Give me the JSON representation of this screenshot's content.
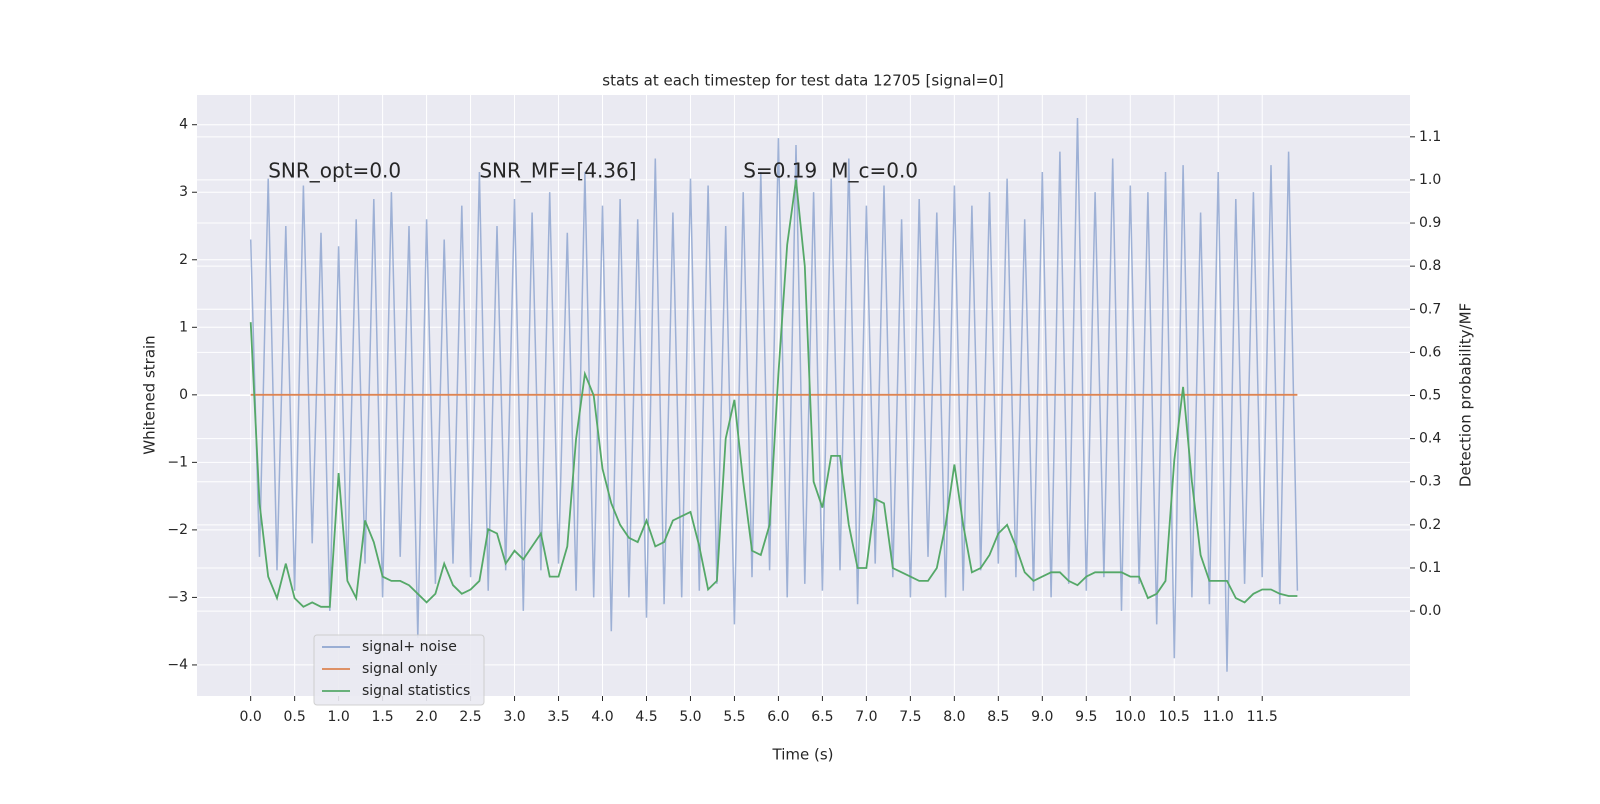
{
  "chart_data": {
    "type": "line",
    "title": "stats at each timestep for test data 12705 [signal=0]",
    "x_label": "Time (s)",
    "y_label": "Whitened strain",
    "y2_label": "Detection probability/MF",
    "annotations": [
      {
        "text": "SNR_opt=0.0",
        "x": 0.2,
        "y": 3.3
      },
      {
        "text": "SNR_MF=[4.36]",
        "x": 2.6,
        "y": 3.3
      },
      {
        "text": "S=0.19",
        "x": 5.6,
        "y": 3.3
      },
      {
        "text": "M_c=0.0",
        "x": 6.6,
        "y": 3.3
      }
    ],
    "xlim": [
      -0.61,
      13.18
    ],
    "ylim": [
      -4.46,
      4.44
    ],
    "y2lim": [
      -0.197,
      1.197
    ],
    "xticks": [
      {
        "value": 0,
        "label": "0.0"
      },
      {
        "value": 0.5,
        "label": "0.5"
      },
      {
        "value": 1,
        "label": "1.0"
      },
      {
        "value": 1.5,
        "label": "1.5"
      },
      {
        "value": 2,
        "label": "2.0"
      },
      {
        "value": 2.5,
        "label": "2.5"
      },
      {
        "value": 3,
        "label": "3.0"
      },
      {
        "value": 3.5,
        "label": "3.5"
      },
      {
        "value": 4,
        "label": "4.0"
      },
      {
        "value": 4.5,
        "label": "4.5"
      },
      {
        "value": 5,
        "label": "5.0"
      },
      {
        "value": 5.5,
        "label": "5.5"
      },
      {
        "value": 6,
        "label": "6.0"
      },
      {
        "value": 6.5,
        "label": "6.5"
      },
      {
        "value": 7,
        "label": "7.0"
      },
      {
        "value": 7.5,
        "label": "7.5"
      },
      {
        "value": 8,
        "label": "8.0"
      },
      {
        "value": 8.5,
        "label": "8.5"
      },
      {
        "value": 9,
        "label": "9.0"
      },
      {
        "value": 9.5,
        "label": "9.5"
      },
      {
        "value": 10,
        "label": "10.0"
      },
      {
        "value": 10.5,
        "label": "10.5"
      },
      {
        "value": 11,
        "label": "11.0"
      },
      {
        "value": 11.5,
        "label": "11.5"
      }
    ],
    "yticks": [
      {
        "value": -4,
        "label": "−4"
      },
      {
        "value": -3,
        "label": "−3"
      },
      {
        "value": -2,
        "label": "−2"
      },
      {
        "value": -1,
        "label": "−1"
      },
      0,
      1,
      2,
      3,
      4
    ],
    "y2ticks": [
      {
        "value": 0,
        "label": "0.0"
      },
      {
        "value": 0.1,
        "label": "0.1"
      },
      {
        "value": 0.2,
        "label": "0.2"
      },
      {
        "value": 0.3,
        "label": "0.3"
      },
      {
        "value": 0.4,
        "label": "0.4"
      },
      {
        "value": 0.5,
        "label": "0.5"
      },
      {
        "value": 0.6,
        "label": "0.6"
      },
      {
        "value": 0.7,
        "label": "0.7"
      },
      {
        "value": 0.8,
        "label": "0.8"
      },
      {
        "value": 0.9,
        "label": "0.9"
      },
      {
        "value": 1,
        "label": "1.0"
      },
      {
        "value": 1.1,
        "label": "1.1"
      }
    ],
    "grid": true,
    "legend": "lower left",
    "x": [
      0,
      0.1,
      0.2,
      0.3,
      0.4,
      0.5,
      0.6,
      0.7,
      0.8,
      0.9,
      1,
      1.1,
      1.2,
      1.3,
      1.4,
      1.5,
      1.6,
      1.7,
      1.8,
      1.9,
      2,
      2.1,
      2.2,
      2.3,
      2.4,
      2.5,
      2.6,
      2.7,
      2.8,
      2.9,
      3,
      3.1,
      3.2,
      3.3,
      3.4,
      3.5,
      3.6,
      3.7,
      3.8,
      3.9,
      4,
      4.1,
      4.2,
      4.3,
      4.4,
      4.5,
      4.6,
      4.7,
      4.8,
      4.9,
      5,
      5.1,
      5.2,
      5.3,
      5.4,
      5.5,
      5.6,
      5.7,
      5.8,
      5.9,
      6,
      6.1,
      6.2,
      6.3,
      6.4,
      6.5,
      6.6,
      6.7,
      6.8,
      6.9,
      7,
      7.1,
      7.2,
      7.3,
      7.4,
      7.5,
      7.6,
      7.7,
      7.8,
      7.9,
      8,
      8.1,
      8.2,
      8.3,
      8.4,
      8.5,
      8.6,
      8.7,
      8.8,
      8.9,
      9,
      9.1,
      9.2,
      9.3,
      9.4,
      9.5,
      9.6,
      9.7,
      9.8,
      9.9,
      10,
      10.1,
      10.2,
      10.3,
      10.4,
      10.5,
      10.6,
      10.7,
      10.8,
      10.9,
      11,
      11.1,
      11.2,
      11.3,
      11.4,
      11.5,
      11.6,
      11.7,
      11.8,
      11.9
    ],
    "series": [
      {
        "name": "signal+ noise",
        "color": "#8fa6d0",
        "values": [
          2.3,
          -2.4,
          3.2,
          -2.6,
          2.5,
          -2.9,
          3.1,
          -2.2,
          2.4,
          -3.2,
          2.2,
          -2.7,
          2.6,
          -2.5,
          2.9,
          -3.0,
          3.0,
          -2.4,
          2.5,
          -3.6,
          2.6,
          -2.8,
          2.3,
          -2.5,
          2.8,
          -2.7,
          3.3,
          -2.9,
          2.5,
          -2.6,
          2.9,
          -3.2,
          2.7,
          -2.6,
          3.0,
          -2.5,
          2.4,
          -2.9,
          3.3,
          -3.0,
          2.8,
          -3.5,
          2.9,
          -3.0,
          2.6,
          -3.3,
          3.5,
          -3.1,
          2.7,
          -3.0,
          3.2,
          -2.9,
          3.1,
          -2.8,
          2.5,
          -3.4,
          3.0,
          -2.7,
          3.3,
          -2.6,
          3.8,
          -3.0,
          3.7,
          -2.8,
          3.0,
          -2.9,
          3.2,
          -2.6,
          3.5,
          -3.1,
          2.8,
          -2.5,
          3.1,
          -2.7,
          2.6,
          -3.0,
          2.9,
          -2.4,
          2.7,
          -3.0,
          3.1,
          -2.9,
          2.8,
          -2.6,
          3.0,
          -2.5,
          3.2,
          -2.7,
          2.6,
          -2.9,
          3.3,
          -3.0,
          3.6,
          -2.8,
          4.1,
          -2.9,
          3.0,
          -2.7,
          3.5,
          -3.2,
          3.1,
          -2.8,
          3.0,
          -3.4,
          3.3,
          -3.9,
          3.4,
          -3.0,
          2.7,
          -3.1,
          3.3,
          -4.1,
          2.9,
          -2.8,
          3.0,
          -2.7,
          3.4,
          -3.1,
          3.6,
          -2.9
        ]
      },
      {
        "name": "signal only",
        "color": "#dd8452",
        "x": [
          0,
          11.9
        ],
        "values": [
          0,
          0
        ]
      },
      {
        "name": "signal statistics",
        "color": "#55a868",
        "axis": "y2",
        "values": [
          0.67,
          0.25,
          0.08,
          0.03,
          0.11,
          0.03,
          0.01,
          0.02,
          0.01,
          0.01,
          0.32,
          0.07,
          0.03,
          0.21,
          0.16,
          0.08,
          0.07,
          0.07,
          0.06,
          0.04,
          0.02,
          0.04,
          0.11,
          0.06,
          0.04,
          0.05,
          0.07,
          0.19,
          0.18,
          0.11,
          0.14,
          0.12,
          0.15,
          0.18,
          0.08,
          0.08,
          0.15,
          0.4,
          0.55,
          0.5,
          0.33,
          0.25,
          0.2,
          0.17,
          0.16,
          0.21,
          0.15,
          0.16,
          0.21,
          0.22,
          0.23,
          0.15,
          0.05,
          0.07,
          0.4,
          0.49,
          0.3,
          0.14,
          0.13,
          0.2,
          0.55,
          0.85,
          1.0,
          0.8,
          0.3,
          0.24,
          0.36,
          0.36,
          0.2,
          0.1,
          0.1,
          0.26,
          0.25,
          0.1,
          0.09,
          0.08,
          0.07,
          0.07,
          0.1,
          0.2,
          0.34,
          0.2,
          0.09,
          0.1,
          0.13,
          0.18,
          0.2,
          0.15,
          0.09,
          0.07,
          0.08,
          0.09,
          0.09,
          0.07,
          0.06,
          0.08,
          0.09,
          0.09,
          0.09,
          0.09,
          0.08,
          0.08,
          0.03,
          0.04,
          0.07,
          0.35,
          0.52,
          0.3,
          0.13,
          0.07,
          0.07,
          0.07,
          0.03,
          0.02,
          0.04,
          0.05,
          0.05,
          0.04,
          0.035,
          0.035
        ]
      }
    ]
  }
}
